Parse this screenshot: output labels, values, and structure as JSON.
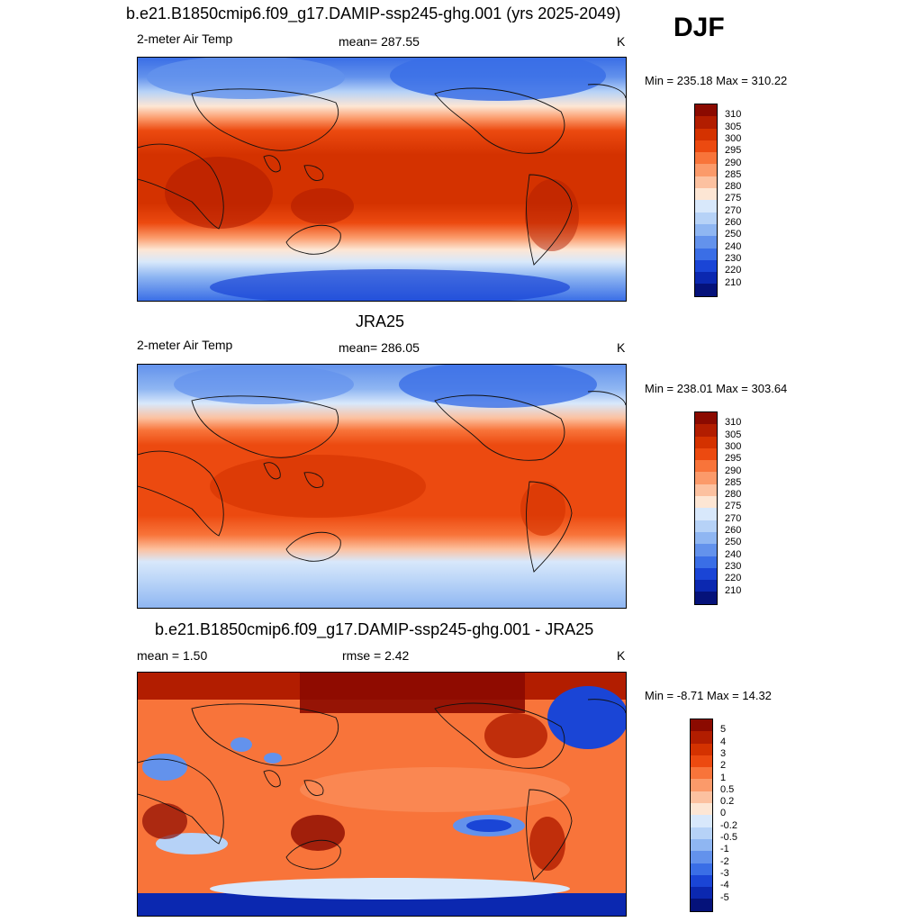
{
  "season": "DJF",
  "panels": [
    {
      "title": "b.e21.B1850cmip6.f09_g17.DAMIP-ssp245-ghg.001 (yrs 2025-2049)",
      "left_text": "2-meter Air Temp",
      "center_text": "mean= 287.55",
      "units": "K",
      "minmax": "Min = 235.18 Max = 310.22",
      "type": "field"
    },
    {
      "title": "JRA25",
      "left_text": "2-meter Air Temp",
      "center_text": "mean= 286.05",
      "units": "K",
      "minmax": "Min = 238.01 Max = 303.64",
      "type": "field"
    },
    {
      "title": "b.e21.B1850cmip6.f09_g17.DAMIP-ssp245-ghg.001 - JRA25",
      "left_text": "mean =   1.50",
      "center_text": "rmse =   2.42",
      "units": "K",
      "minmax": "Min =  -8.71 Max =  14.32",
      "type": "diff"
    }
  ],
  "colorbars": {
    "field": {
      "labels": [
        "310",
        "305",
        "300",
        "295",
        "290",
        "285",
        "280",
        "275",
        "270",
        "260",
        "250",
        "240",
        "230",
        "220",
        "210"
      ],
      "colors": [
        "#8b0a00",
        "#b21d00",
        "#d43200",
        "#ec4a10",
        "#f8743a",
        "#fb9a6a",
        "#fcc1a0",
        "#fde6d4",
        "#d8e8fb",
        "#b6d2f7",
        "#8fb6f2",
        "#6392ec",
        "#3a6ee6",
        "#1a45d6",
        "#0b28b0",
        "#05127a"
      ]
    },
    "diff": {
      "labels": [
        "5",
        "4",
        "3",
        "2",
        "1",
        "0.5",
        "0.2",
        "0",
        "-0.2",
        "-0.5",
        "-1",
        "-2",
        "-3",
        "-4",
        "-5"
      ],
      "colors": [
        "#8b0a00",
        "#b21d00",
        "#d43200",
        "#ec4a10",
        "#f8743a",
        "#fb9a6a",
        "#fcc1a0",
        "#fde6d4",
        "#d8e8fb",
        "#b6d2f7",
        "#8fb6f2",
        "#6392ec",
        "#3a6ee6",
        "#1a45d6",
        "#0b28b0",
        "#05127a"
      ]
    }
  }
}
